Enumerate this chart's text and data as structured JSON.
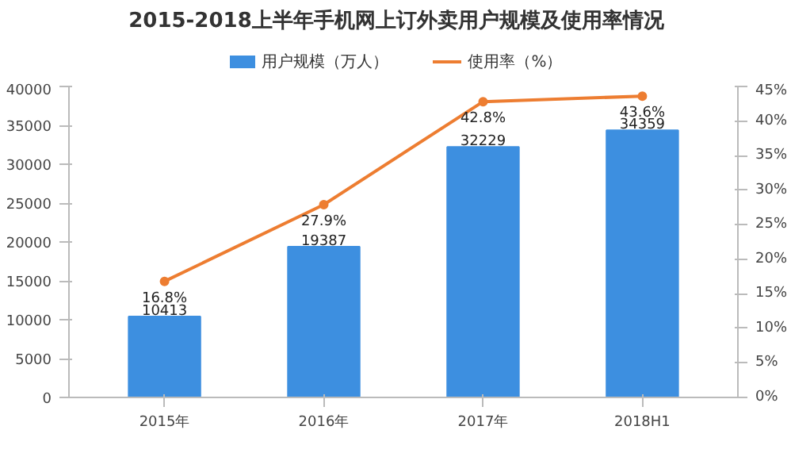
{
  "chart_data": {
    "type": "bar",
    "title": "2015-2018上半年手机网上订外卖用户规模及使用率情况",
    "categories": [
      "2015年",
      "2016年",
      "2017年",
      "2018H1"
    ],
    "series": [
      {
        "name": "用户规模（万人）",
        "color": "#3d8fe0",
        "values": [
          10413,
          19387,
          32229,
          34359
        ]
      },
      {
        "name": "使用率（%）",
        "type": "line",
        "axis": "y2",
        "color": "#ed7d31",
        "marker": "circle",
        "values": [
          16.8,
          27.9,
          42.8,
          43.6
        ],
        "value_labels": [
          "16.8%",
          "27.9%",
          "42.8%",
          "43.6%"
        ]
      }
    ],
    "ylim": [
      0,
      40000
    ],
    "yticks": [
      0,
      5000,
      10000,
      15000,
      20000,
      25000,
      30000,
      35000,
      40000
    ],
    "y2lim": [
      0,
      45
    ],
    "y2ticks": [
      {
        "value": 0,
        "label": "0%"
      },
      {
        "value": 5,
        "label": "5%"
      },
      {
        "value": 10,
        "label": "10%"
      },
      {
        "value": 15,
        "label": "15%"
      },
      {
        "value": 20,
        "label": "20%"
      },
      {
        "value": 25,
        "label": "25%"
      },
      {
        "value": 30,
        "label": "30%"
      },
      {
        "value": 35,
        "label": "35%"
      },
      {
        "value": 40,
        "label": "40%"
      },
      {
        "value": 45,
        "label": "45%"
      }
    ],
    "data_labels": true,
    "legend": "top",
    "grid": false
  }
}
